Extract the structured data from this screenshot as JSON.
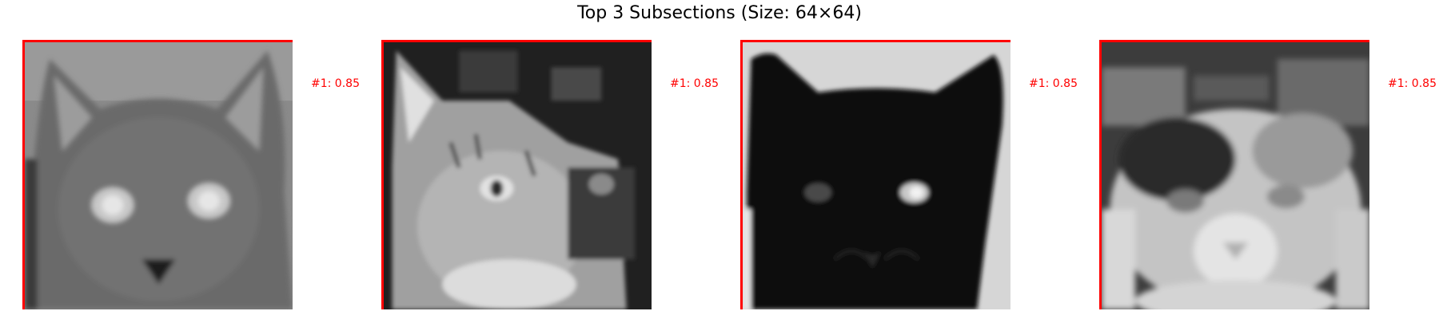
{
  "title": "Top 3 Subsections (Size: 64×64)",
  "panels": [
    {
      "label": "#1: 0.85",
      "image": "gray-cat-face"
    },
    {
      "label": "#1: 0.85",
      "image": "tabby-cat-face"
    },
    {
      "label": "#1: 0.85",
      "image": "black-cat-face"
    },
    {
      "label": "#1: 0.85",
      "image": "calico-cat-face"
    }
  ],
  "colors": {
    "highlight": "#ff0000",
    "background": "#ffffff"
  }
}
